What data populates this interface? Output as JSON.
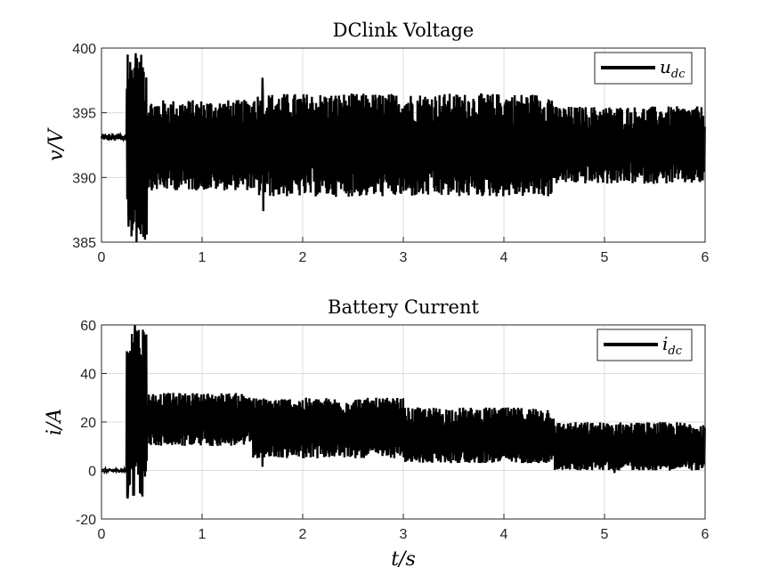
{
  "chart_data": [
    {
      "type": "line",
      "title": "DClink Voltage",
      "xlabel": "",
      "ylabel": "v/V",
      "xlim": [
        0,
        6
      ],
      "ylim": [
        385,
        400
      ],
      "xticks": [
        "0",
        "1",
        "2",
        "3",
        "4",
        "5",
        "6"
      ],
      "yticks": [
        "385",
        "390",
        "395",
        "400"
      ],
      "grid": true,
      "legend_position": "top-right",
      "series": [
        {
          "name": "u_dc",
          "legend_main": "u",
          "legend_sub": "dc",
          "color": "#000000",
          "description_segments": [
            {
              "t_start": 0.0,
              "t_end": 0.25,
              "mean": 393.1,
              "band_low": 392.9,
              "band_high": 393.4
            },
            {
              "t_start": 0.25,
              "t_end": 0.45,
              "mean": 392.3,
              "band_low": 385.0,
              "band_high": 399.5
            },
            {
              "t_start": 0.45,
              "t_end": 1.5,
              "mean": 392.3,
              "band_low": 389.0,
              "band_high": 396.0
            },
            {
              "t_start": 1.5,
              "t_end": 4.5,
              "mean": 392.3,
              "band_low": 388.5,
              "band_high": 396.5
            },
            {
              "t_start": 4.5,
              "t_end": 6.0,
              "mean": 392.3,
              "band_low": 389.5,
              "band_high": 395.5
            }
          ],
          "peaks": [
            {
              "t": 0.26,
              "y": 399.5
            },
            {
              "t": 0.27,
              "y": 386.2
            },
            {
              "t": 0.34,
              "y": 399.6
            },
            {
              "t": 0.35,
              "y": 385.0
            },
            {
              "t": 1.6,
              "y": 397.7
            },
            {
              "t": 1.61,
              "y": 387.4
            }
          ]
        }
      ]
    },
    {
      "type": "line",
      "title": "Battery Current",
      "xlabel": "t/s",
      "ylabel": "i/A",
      "xlim": [
        0,
        6
      ],
      "ylim": [
        -20,
        60
      ],
      "xticks": [
        "0",
        "1",
        "2",
        "3",
        "4",
        "5",
        "6"
      ],
      "yticks": [
        "-20",
        "0",
        "20",
        "40",
        "60"
      ],
      "grid": true,
      "legend_position": "top-right",
      "series": [
        {
          "name": "i_dc",
          "legend_main": "i",
          "legend_sub": "dc",
          "color": "#000000",
          "description_segments": [
            {
              "t_start": 0.0,
              "t_end": 0.25,
              "mean": 0.0,
              "band_low": -0.5,
              "band_high": 0.5
            },
            {
              "t_start": 0.25,
              "t_end": 0.45,
              "mean": 22.0,
              "band_low": -11.0,
              "band_high": 60.0
            },
            {
              "t_start": 0.45,
              "t_end": 1.5,
              "mean": 21.0,
              "band_low": 10.0,
              "band_high": 32.0
            },
            {
              "t_start": 1.5,
              "t_end": 3.0,
              "mean": 17.0,
              "band_low": 5.0,
              "band_high": 30.0
            },
            {
              "t_start": 3.0,
              "t_end": 4.5,
              "mean": 13.0,
              "band_low": 3.0,
              "band_high": 26.0
            },
            {
              "t_start": 4.5,
              "t_end": 6.0,
              "mean": 9.0,
              "band_low": 0.0,
              "band_high": 20.0
            }
          ],
          "peaks": [
            {
              "t": 0.26,
              "y": -11.5
            },
            {
              "t": 0.33,
              "y": 60.0
            },
            {
              "t": 0.35,
              "y": 57.0
            },
            {
              "t": 1.6,
              "y": 1.5
            },
            {
              "t": 5.1,
              "y": -1.0
            }
          ]
        }
      ]
    }
  ]
}
